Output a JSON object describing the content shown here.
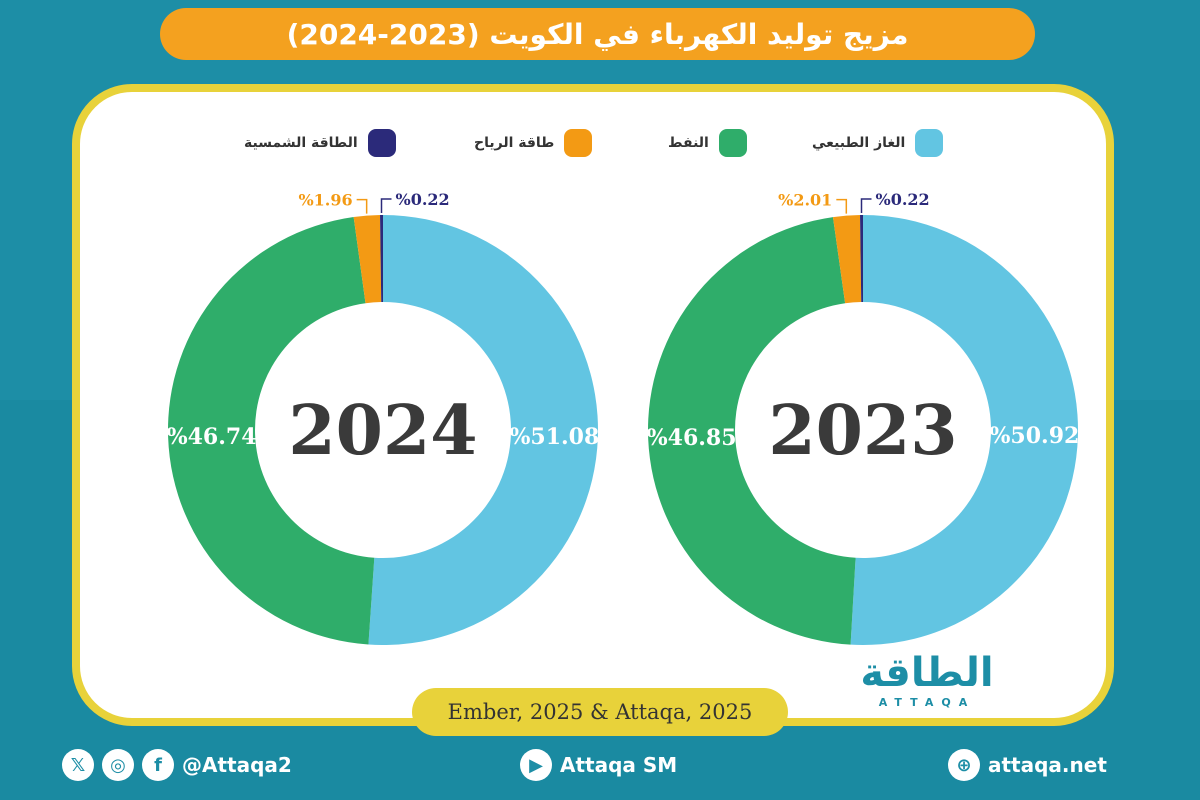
{
  "title": "مزيج توليد الكهرباء في الكويت (2023-2024)",
  "legend": [
    {
      "label": "الغاز الطبيعي",
      "color": "#62c5e2"
    },
    {
      "label": "النفط",
      "color": "#2fad6a"
    },
    {
      "label": "طاقة الرياح",
      "color": "#f39a14"
    },
    {
      "label": "الطاقة الشمسية",
      "color": "#2b2a7a"
    }
  ],
  "chart_data": [
    {
      "type": "pie",
      "center_label": "2024",
      "categories": [
        "الغاز الطبيعي",
        "النفط",
        "طاقة الرياح",
        "الطاقة الشمسية"
      ],
      "values": [
        51.08,
        46.74,
        1.96,
        0.22
      ],
      "labels": [
        "%51.08",
        "%46.74",
        "%1.96",
        "%0.22"
      ]
    },
    {
      "type": "pie",
      "center_label": "2023",
      "categories": [
        "الغاز الطبيعي",
        "النفط",
        "طاقة الرياح",
        "الطاقة الشمسية"
      ],
      "values": [
        50.92,
        46.85,
        2.01,
        0.22
      ],
      "labels": [
        "%50.92",
        "%46.85",
        "%2.01",
        "%0.22"
      ]
    }
  ],
  "source": "Ember, 2025 & Attaqa, 2025",
  "logo": {
    "arabic": "الطاقة",
    "english": "ATTAQA"
  },
  "footer": {
    "social_handle": "@Attaqa2",
    "youtube": "Attaqa SM",
    "website": "attaqa.net"
  }
}
